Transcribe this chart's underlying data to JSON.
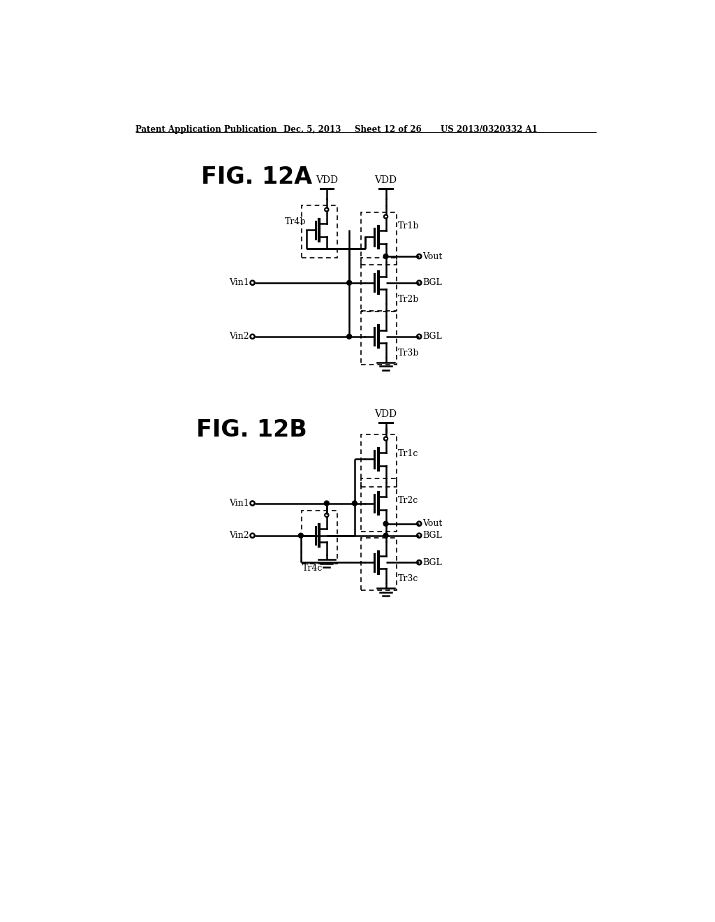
{
  "bg_color": "#ffffff",
  "header_text": "Patent Application Publication",
  "header_date": "Dec. 5, 2013",
  "header_sheet": "Sheet 12 of 26",
  "header_patent": "US 2013/0320332 A1",
  "fig_12a_label": "FIG. 12A",
  "fig_12b_label": "FIG. 12B"
}
